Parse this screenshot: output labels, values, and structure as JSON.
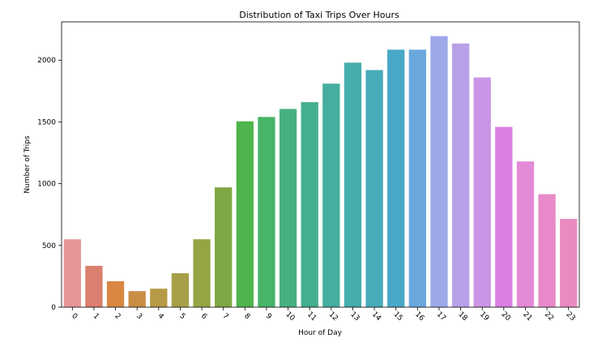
{
  "chart_data": {
    "type": "bar",
    "title": "Distribution of Taxi Trips Over Hours",
    "xlabel": "Hour of Day",
    "ylabel": "Number of Trips",
    "categories": [
      "0",
      "1",
      "2",
      "3",
      "4",
      "5",
      "6",
      "7",
      "8",
      "9",
      "10",
      "11",
      "12",
      "13",
      "14",
      "15",
      "16",
      "17",
      "18",
      "19",
      "20",
      "21",
      "22",
      "23"
    ],
    "values": [
      550,
      335,
      210,
      130,
      150,
      275,
      550,
      970,
      1505,
      1540,
      1605,
      1660,
      1810,
      1980,
      1920,
      2085,
      2085,
      2195,
      2135,
      1860,
      1460,
      1180,
      915,
      715
    ],
    "ylim": [
      0,
      2310
    ],
    "yticks": [
      0,
      500,
      1000,
      1500,
      2000
    ],
    "xtick_rotation": 45,
    "grid": false,
    "legend": "none",
    "colors": [
      "#e8969a",
      "#db7f6e",
      "#d98743",
      "#c98d45",
      "#b79a46",
      "#a79f47",
      "#97a444",
      "#7fa744",
      "#4fb44c",
      "#48b468",
      "#46b17f",
      "#45ae90",
      "#45ae9f",
      "#46adad",
      "#48abb8",
      "#4aa8c7",
      "#6aa8de",
      "#9da8e9",
      "#b8a0e8",
      "#ca95e5",
      "#db7fe3",
      "#e58ad7",
      "#e88ac9",
      "#e98bbf"
    ]
  }
}
